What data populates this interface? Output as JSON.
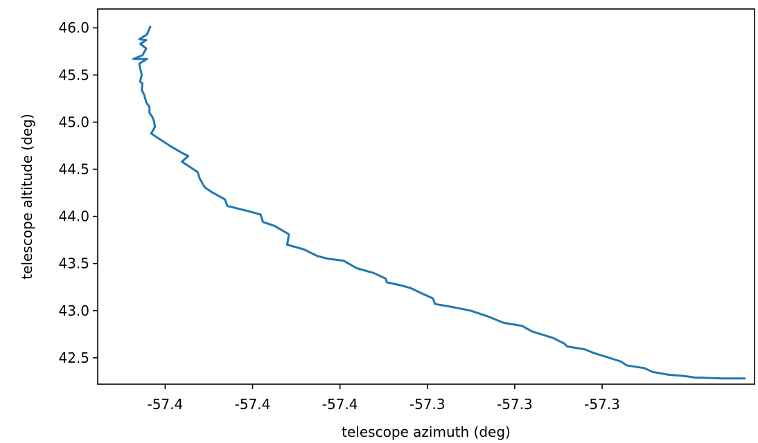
{
  "chart_data": {
    "type": "line",
    "xlabel": "telescope azimuth (deg)",
    "ylabel": "telescope altitude (deg)",
    "xlim": [
      -57.4443,
      -57.2564
    ],
    "ylim": [
      42.22,
      46.2
    ],
    "x_ticks": [
      {
        "value": -57.425,
        "label": "-57.4"
      },
      {
        "value": -57.4,
        "label": "-57.4"
      },
      {
        "value": -57.375,
        "label": "-57.4"
      },
      {
        "value": -57.35,
        "label": "-57.3"
      },
      {
        "value": -57.325,
        "label": "-57.3"
      },
      {
        "value": -57.3,
        "label": "-57.3"
      }
    ],
    "y_ticks": [
      {
        "value": 42.5,
        "label": "42.5"
      },
      {
        "value": 43.0,
        "label": "43.0"
      },
      {
        "value": 43.5,
        "label": "43.5"
      },
      {
        "value": 44.0,
        "label": "44.0"
      },
      {
        "value": 44.5,
        "label": "44.5"
      },
      {
        "value": 45.0,
        "label": "45.0"
      },
      {
        "value": 45.5,
        "label": "45.5"
      },
      {
        "value": 46.0,
        "label": "46.0"
      }
    ],
    "grid": false,
    "series": [
      {
        "color": "#1f77b4",
        "x": [
          -57.4293,
          -57.4302,
          -57.4324,
          -57.4304,
          -57.4321,
          -57.4304,
          -57.4315,
          -57.4341,
          -57.4302,
          -57.4324,
          -57.4322,
          -57.4317,
          -57.4322,
          -57.4315,
          -57.4317,
          -57.431,
          -57.4304,
          -57.4295,
          -57.4295,
          -57.4286,
          -57.4282,
          -57.4279,
          -57.429,
          -57.4274,
          -57.4233,
          -57.42,
          -57.4184,
          -57.4202,
          -57.4157,
          -57.4151,
          -57.4137,
          -57.4118,
          -57.4079,
          -57.4072,
          -57.4017,
          -57.3977,
          -57.397,
          -57.3938,
          -57.3896,
          -57.3901,
          -57.3853,
          -57.3815,
          -57.3783,
          -57.374,
          -57.3702,
          -57.3654,
          -57.3619,
          -57.3616,
          -57.3578,
          -57.3548,
          -57.3526,
          -57.3484,
          -57.3478,
          -57.3431,
          -57.3376,
          -57.3328,
          -57.3281,
          -57.323,
          -57.3201,
          -57.3166,
          -57.314,
          -57.3108,
          -57.31,
          -57.305,
          -57.3023,
          -57.2989,
          -57.2946,
          -57.293,
          -57.2879,
          -57.2856,
          -57.281,
          -57.2774,
          -57.2752,
          -57.2735,
          -57.2718,
          -57.2656,
          -57.2624,
          -57.2593
        ],
        "y": [
          46.01,
          45.93,
          45.88,
          45.87,
          45.83,
          45.78,
          45.71,
          45.67,
          45.67,
          45.62,
          45.58,
          45.5,
          45.43,
          45.41,
          45.34,
          45.29,
          45.21,
          45.16,
          45.1,
          45.05,
          45.01,
          44.95,
          44.88,
          44.84,
          44.74,
          44.67,
          44.64,
          44.58,
          44.47,
          44.4,
          44.31,
          44.26,
          44.18,
          44.11,
          44.06,
          44.02,
          43.94,
          43.9,
          43.81,
          43.7,
          43.65,
          43.58,
          43.55,
          43.53,
          43.45,
          43.4,
          43.34,
          43.3,
          43.27,
          43.24,
          43.2,
          43.13,
          43.07,
          43.04,
          43.0,
          42.94,
          42.87,
          42.84,
          42.78,
          42.74,
          42.71,
          42.65,
          42.62,
          42.59,
          42.55,
          42.51,
          42.46,
          42.42,
          42.39,
          42.35,
          42.32,
          42.31,
          42.3,
          42.29,
          42.29,
          42.28,
          42.28,
          42.28
        ]
      }
    ]
  }
}
